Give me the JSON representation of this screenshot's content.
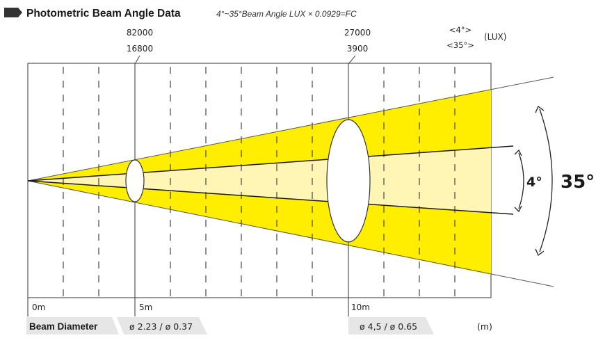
{
  "header": {
    "title": "Photometric Beam Angle Data",
    "subtitle": "4°~35°Beam Angle  LUX × 0.0929=FC"
  },
  "colors": {
    "wide_beam": "#ffee00",
    "narrow_beam": "#fff5b4",
    "frame": "#333333",
    "tag_bg": "#e6e6e6"
  },
  "lux_legend": {
    "narrow_label": "<4°>",
    "wide_label": "<35°>",
    "unit": "(LUX)"
  },
  "beam_angles": {
    "narrow": "4°",
    "wide": "35°"
  },
  "distances": [
    {
      "label": "0m"
    },
    {
      "label": "5m",
      "lux_narrow": "82000",
      "lux_wide": "16800",
      "diameter": "ø 2.23 / ø 0.37"
    },
    {
      "label": "10m",
      "lux_narrow": "27000",
      "lux_wide": "3900",
      "diameter": "ø 4,5 / ø 0.65"
    }
  ],
  "beam_diameter_label": "Beam Diameter",
  "diameter_unit": "(m)"
}
